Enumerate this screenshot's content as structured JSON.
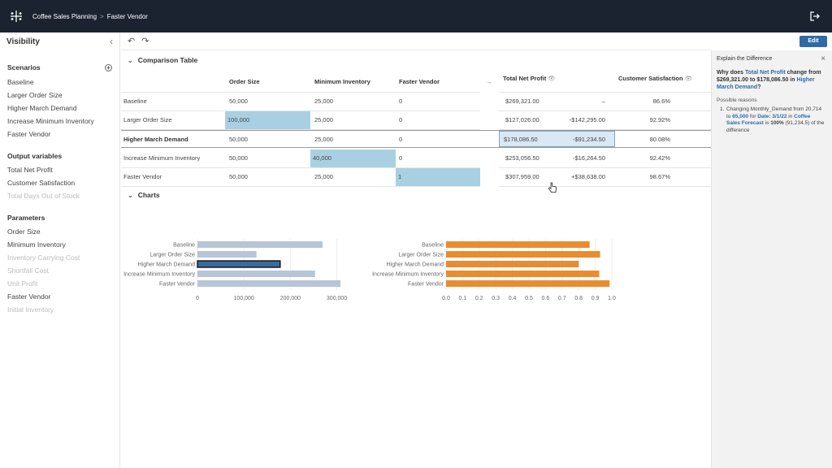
{
  "header": {
    "workbook": "Coffee Sales Planning",
    "separator": ">",
    "sheet": "Faster Vendor",
    "logo_icon": "tableau-logo-icon",
    "logout_icon": "logout-icon",
    "bg_color": "#1b2230"
  },
  "sidebar": {
    "title": "Visibility",
    "collapse": "‹",
    "scenarios": {
      "title": "Scenarios",
      "items": [
        "Baseline",
        "Larger Order Size",
        "Higher March Demand",
        "Increase Minimum Inventory",
        "Faster Vendor"
      ]
    },
    "outputs": {
      "title": "Output variables",
      "items": [
        {
          "label": "Total Net Profit",
          "disabled": false
        },
        {
          "label": "Customer Satisfaction",
          "disabled": false
        },
        {
          "label": "Total Days Out of Stock",
          "disabled": true
        }
      ]
    },
    "parameters": {
      "title": "Parameters",
      "items": [
        {
          "label": "Order Size",
          "disabled": false
        },
        {
          "label": "Minimum Inventory",
          "disabled": false
        },
        {
          "label": "Inventory Carrying Cost",
          "disabled": true
        },
        {
          "label": "Shortfall Cost",
          "disabled": true
        },
        {
          "label": "Unit Profit",
          "disabled": true
        },
        {
          "label": "Faster Vendor",
          "disabled": false
        },
        {
          "label": "Initial Inventory",
          "disabled": true
        }
      ]
    }
  },
  "toolbar": {
    "undo": "↶",
    "redo": "↷",
    "edit_label": "Edit"
  },
  "comparison": {
    "title": "Comparison Table",
    "columns": [
      "Order Size",
      "Minimum Inventory",
      "Faster Vendor"
    ],
    "arrow": "→",
    "output_columns": [
      "Total Net Profit",
      "Customer Satisfaction"
    ],
    "rows": [
      {
        "name": "Baseline",
        "order": "50,000",
        "mininv": "25,000",
        "vendor": "0",
        "profit": "$269,321.00",
        "delta": "–",
        "sat": "86.6%"
      },
      {
        "name": "Larger Order Size",
        "order": "100,000",
        "mininv": "25,000",
        "vendor": "0",
        "profit": "$127,026.00",
        "delta": "-$142,295.00",
        "sat": "92.92%"
      },
      {
        "name": "Higher March Demand",
        "order": "50,000",
        "mininv": "25,000",
        "vendor": "0",
        "profit": "$178,086.50",
        "delta": "-$91,234.50",
        "sat": "80.08%"
      },
      {
        "name": "Increase Minimum Inventory",
        "order": "50,000",
        "mininv": "40,000",
        "vendor": "0",
        "profit": "$253,056.50",
        "delta": "-$16,264.50",
        "sat": "92.42%"
      },
      {
        "name": "Faster Vendor",
        "order": "50,000",
        "mininv": "25,000",
        "vendor": "1",
        "profit": "$307,959.00",
        "delta": "+$38,638.00",
        "sat": "98.67%"
      }
    ],
    "highlight_color": "#a9d0e2"
  },
  "charts": {
    "title": "Charts",
    "profit": {
      "xlabel": "Total Net Profit",
      "ticks": [
        "0",
        "100,000",
        "200,000",
        "300,000"
      ],
      "tick_values": [
        0,
        100000,
        200000,
        300000
      ],
      "xmax": 320000,
      "color": "#b8c4d8"
    },
    "satisfaction": {
      "xlabel": "Customer Satisfaction",
      "ticks": [
        "0.0",
        "0.1",
        "0.2",
        "0.3",
        "0.4",
        "0.5",
        "0.6",
        "0.7",
        "0.8",
        "0.9",
        "1.0"
      ],
      "xmax": 1.0,
      "color": "#e98c2f"
    }
  },
  "chart_data": [
    {
      "type": "bar",
      "orientation": "horizontal",
      "categories": [
        "Baseline",
        "Larger Order Size",
        "Higher March Demand",
        "Increase Minimum Inventory",
        "Faster Vendor"
      ],
      "values": [
        269321,
        127026,
        178086.5,
        253056.5,
        307959
      ],
      "xlabel": "Total Net Profit",
      "xlim": [
        0,
        320000
      ]
    },
    {
      "type": "bar",
      "orientation": "horizontal",
      "categories": [
        "Baseline",
        "Larger Order Size",
        "Higher March Demand",
        "Increase Minimum Inventory",
        "Faster Vendor"
      ],
      "values": [
        0.866,
        0.9292,
        0.8008,
        0.9242,
        0.9867
      ],
      "xlabel": "Customer Satisfaction",
      "xlim": [
        0,
        1.0
      ]
    }
  ],
  "explain": {
    "title": "Explain the Difference",
    "close": "×",
    "q_pre": "Why does ",
    "q_metric": "Total Net Profit",
    "q_mid": " change from $269,321.00 to $178,086.50 in ",
    "q_scenario": "Higher March Demand",
    "q_end": "?",
    "reasons_label": "Possible reasons",
    "reason_num": "1.",
    "r1": "Changing Monthly_Demand from 20,714 to ",
    "r2": "65,000",
    "r3": " for ",
    "r4": "Date: 3/1/22",
    "r5": " in ",
    "r6": "Coffee Sales Forecast",
    "r7": " is ",
    "r8": "100%",
    "r9": " (91,234.5) of the difference"
  }
}
